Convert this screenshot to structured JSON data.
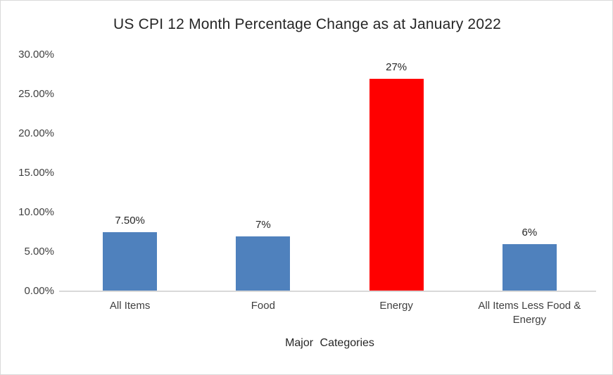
{
  "window": {
    "background_color": "#FFFFFF",
    "border_color": "#D9D9D9"
  },
  "chart_data": {
    "type": "bar",
    "title": "US CPI 12 Month Percentage Change as at January 2022",
    "xlabel": "Major Categories",
    "ylabel": "",
    "categories": [
      "All Items",
      "Food",
      "Energy",
      "All Items Less Food & Energy"
    ],
    "values": [
      7.5,
      7,
      27,
      6
    ],
    "value_labels": [
      "7.50%",
      "7%",
      "27%",
      "6%"
    ],
    "bar_colors": [
      "#4F81BD",
      "#4F81BD",
      "#FF0000",
      "#4F81BD"
    ],
    "ylim": [
      0,
      30
    ],
    "ytick_step": 5,
    "ytick_labels": [
      "0.00%",
      "5.00%",
      "10.00%",
      "15.00%",
      "20.00%",
      "25.00%",
      "30.00%"
    ],
    "grid": false,
    "legend_position": "none",
    "axis_line_color": "#D9D9D9",
    "text_color": "#404040",
    "title_color": "#262626"
  }
}
